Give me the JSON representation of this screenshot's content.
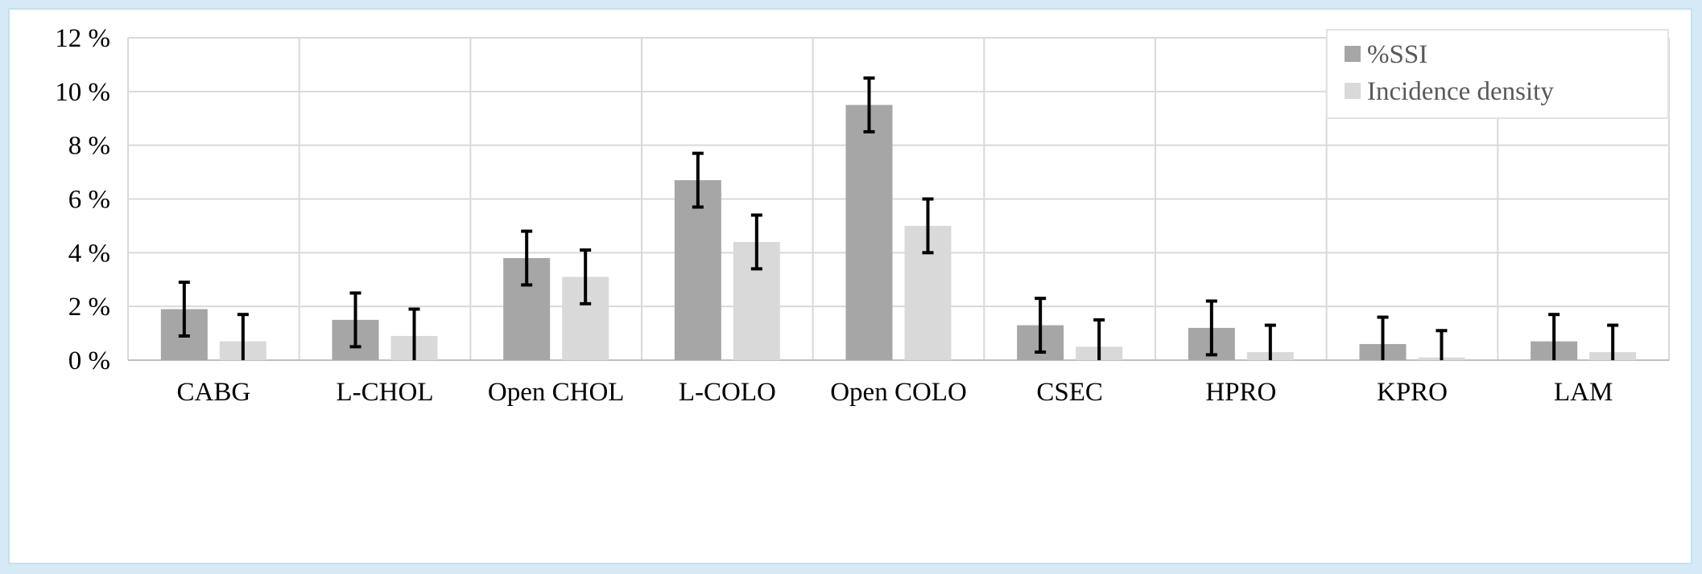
{
  "chart_data": {
    "type": "bar",
    "categories": [
      "CABG",
      "L-CHOL",
      "Open CHOL",
      "L-COLO",
      "Open COLO",
      "CSEC",
      "HPRO",
      "KPRO",
      "LAM"
    ],
    "series": [
      {
        "name": "%SSI",
        "color": "#a6a6a6",
        "values": [
          1.9,
          1.5,
          3.8,
          6.7,
          9.5,
          1.3,
          1.2,
          0.6,
          0.7
        ],
        "error_low": [
          0.9,
          0.5,
          2.8,
          5.7,
          8.5,
          0.3,
          0.2,
          0.0,
          0.0
        ],
        "error_high": [
          2.9,
          2.5,
          4.8,
          7.7,
          10.5,
          2.3,
          2.2,
          1.6,
          1.7
        ]
      },
      {
        "name": "Incidence density",
        "color": "#d9d9d9",
        "values": [
          0.7,
          0.9,
          3.1,
          4.4,
          5.0,
          0.5,
          0.3,
          0.1,
          0.3
        ],
        "error_low": [
          0.0,
          0.0,
          2.1,
          3.4,
          4.0,
          0.0,
          0.0,
          0.0,
          0.0
        ],
        "error_high": [
          1.7,
          1.9,
          4.1,
          5.4,
          6.0,
          1.5,
          1.3,
          1.1,
          1.3
        ]
      }
    ],
    "yticks": [
      "0 %",
      "2 %",
      "4 %",
      "6 %",
      "8 %",
      "10 %",
      "12 %"
    ],
    "ylim": [
      0,
      12
    ],
    "grid": true,
    "legend_position": "top-right",
    "title": "",
    "xlabel": "",
    "ylabel": ""
  }
}
